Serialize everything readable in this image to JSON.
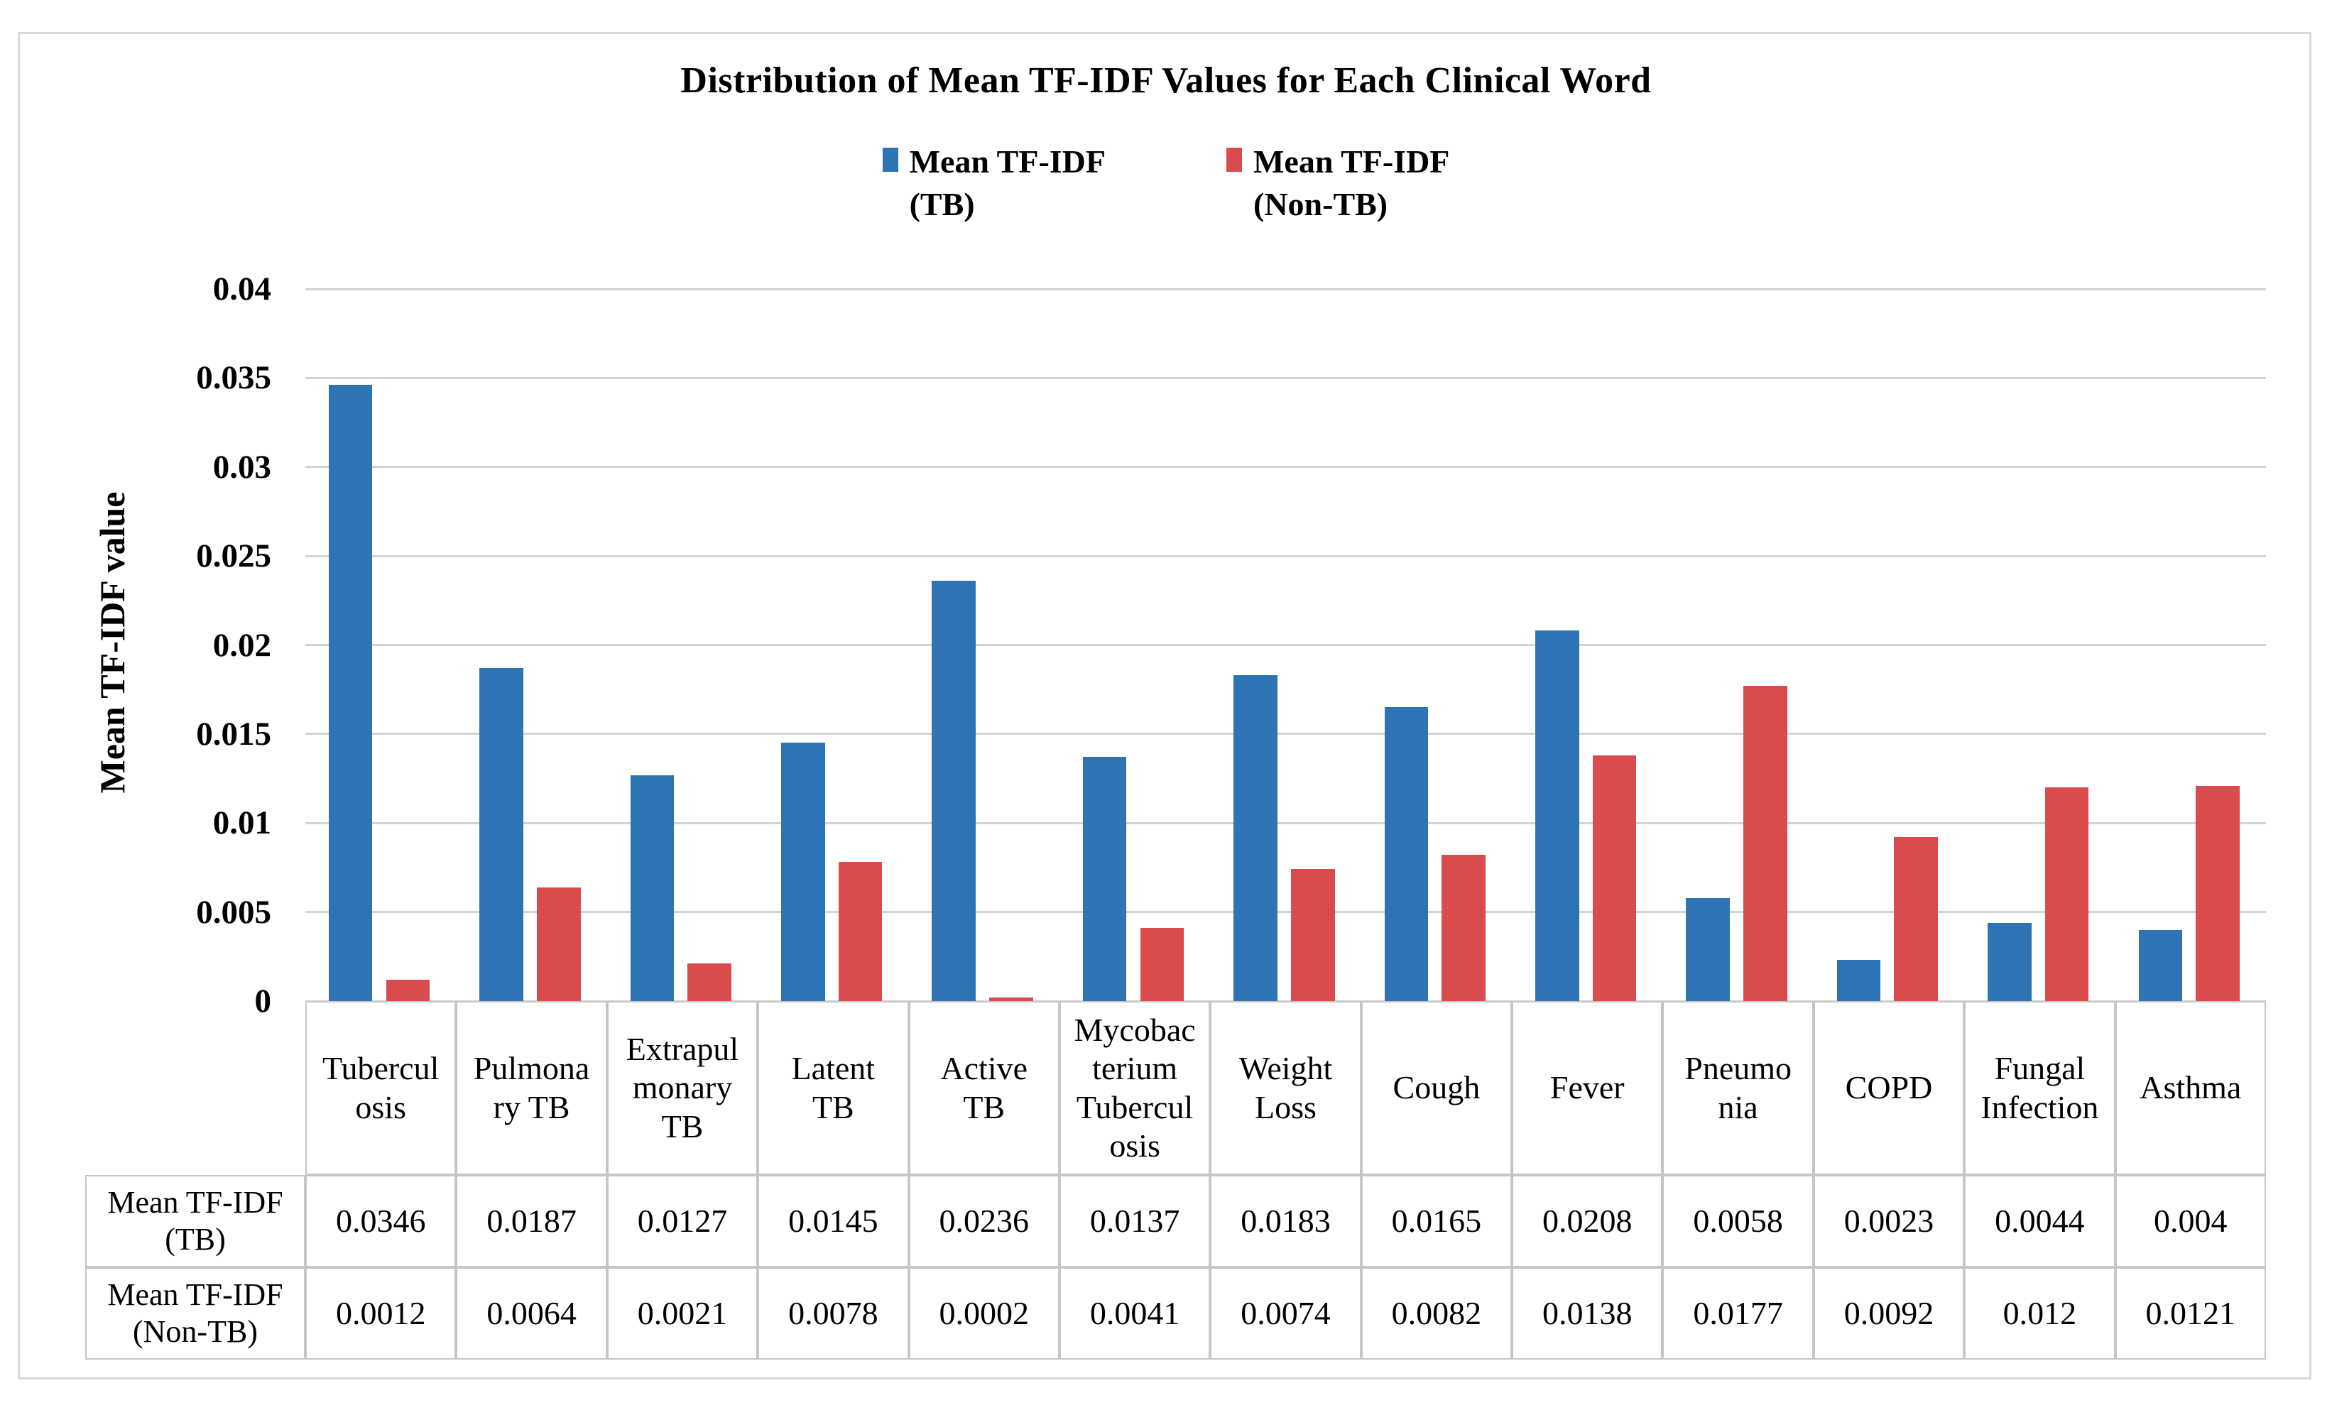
{
  "figure": {
    "background": "#FFFFFF",
    "border_color": "#D9D9D9"
  },
  "chart_data": {
    "type": "bar",
    "title": "Distribution of Mean TF-IDF Values for Each Clinical Word",
    "xlabel": "",
    "ylabel": "Mean TF-IDF value",
    "ylim": [
      0,
      0.04
    ],
    "grid": "horizontal-major",
    "gridline_color": "#D3D3D3",
    "legend_position": "top-center",
    "yticks": [
      {
        "value": 0.04,
        "label": "0.04"
      },
      {
        "value": 0.035,
        "label": "0.035"
      },
      {
        "value": 0.03,
        "label": "0.03"
      },
      {
        "value": 0.025,
        "label": "0.025"
      },
      {
        "value": 0.02,
        "label": "0.02"
      },
      {
        "value": 0.015,
        "label": "0.015"
      },
      {
        "value": 0.01,
        "label": "0.01"
      },
      {
        "value": 0.005,
        "label": "0.005"
      },
      {
        "value": 0,
        "label": "0"
      }
    ],
    "categories": [
      "Tuberculosis",
      "Pulmonary TB",
      "Extrapulmonary TB",
      "Latent TB",
      "Active TB",
      "Mycobacterium Tuberculosis",
      "Weight Loss",
      "Cough",
      "Fever",
      "Pneumonia",
      "COPD",
      "Fungal Infection",
      "Asthma"
    ],
    "categories_wrapped": [
      "Tubercul\nosis",
      "Pulmona\nry TB",
      "Extrapul\nmonary\nTB",
      "Latent\nTB",
      "Active\nTB",
      "Mycobac\nterium\nTubercul\nosis",
      "Weight\nLoss",
      "Cough",
      "Fever",
      "Pneumo\nnia",
      "COPD",
      "Fungal\nInfection",
      "Asthma"
    ],
    "series": [
      {
        "name": "Mean TF-IDF (TB)",
        "name_lines": "Mean TF-IDF\n(TB)",
        "color": "#2E74B5",
        "values": [
          0.0346,
          0.0187,
          0.0127,
          0.0145,
          0.0236,
          0.0137,
          0.0183,
          0.0165,
          0.0208,
          0.0058,
          0.0023,
          0.0044,
          0.004
        ],
        "values_display": [
          "0.0346",
          "0.0187",
          "0.0127",
          "0.0145",
          "0.0236",
          "0.0137",
          "0.0183",
          "0.0165",
          "0.0208",
          "0.0058",
          "0.0023",
          "0.0044",
          "0.004"
        ]
      },
      {
        "name": "Mean TF-IDF (Non-TB)",
        "name_lines": "Mean TF-IDF\n(Non-TB)",
        "color": "#D94B4D",
        "values": [
          0.0012,
          0.0064,
          0.0021,
          0.0078,
          0.0002,
          0.0041,
          0.0074,
          0.0082,
          0.0138,
          0.0177,
          0.0092,
          0.012,
          0.0121
        ],
        "values_display": [
          "0.0012",
          "0.0064",
          "0.0021",
          "0.0078",
          "0.0002",
          "0.0041",
          "0.0074",
          "0.0082",
          "0.0138",
          "0.0177",
          "0.0092",
          "0.012",
          "0.0121"
        ]
      }
    ],
    "data_table": {
      "shown": true,
      "border_color": "#C6C6C6",
      "row_headers": [
        "Mean TF-IDF\n(TB)",
        "Mean TF-IDF\n(Non-TB)"
      ]
    }
  }
}
